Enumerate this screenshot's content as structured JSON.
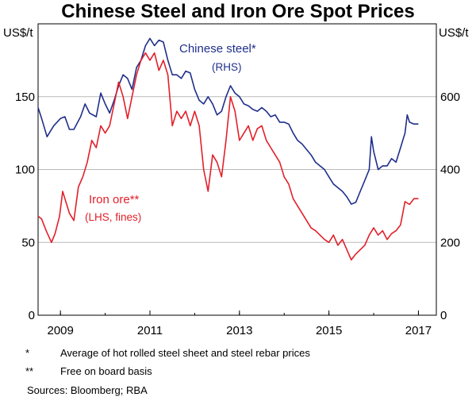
{
  "chart_data": {
    "type": "line",
    "title": "Chinese Steel and Iron Ore Spot Prices",
    "left_axis": {
      "unit": "US$/t",
      "ylim": [
        0,
        200
      ],
      "ticks": [
        0,
        50,
        100,
        150
      ]
    },
    "right_axis": {
      "unit": "US$/t",
      "ylim": [
        0,
        800
      ],
      "ticks": [
        0,
        200,
        400,
        600
      ]
    },
    "x_axis": {
      "xlim": [
        2008.5,
        2017.4
      ],
      "tick_labels": [
        "2009",
        "2011",
        "2013",
        "2015",
        "2017"
      ],
      "tick_positions": [
        2009,
        2011,
        2013,
        2015,
        2017
      ]
    },
    "grid": true,
    "series": [
      {
        "name": "Chinese steel*",
        "note": "(RHS)",
        "axis": "right",
        "color": "#1f2f8a",
        "points": [
          [
            2008.5,
            570
          ],
          [
            2008.58,
            540
          ],
          [
            2008.7,
            490
          ],
          [
            2008.85,
            520
          ],
          [
            2009.0,
            540
          ],
          [
            2009.1,
            545
          ],
          [
            2009.2,
            510
          ],
          [
            2009.3,
            510
          ],
          [
            2009.45,
            545
          ],
          [
            2009.55,
            580
          ],
          [
            2009.65,
            555
          ],
          [
            2009.8,
            545
          ],
          [
            2009.9,
            610
          ],
          [
            2010.0,
            580
          ],
          [
            2010.1,
            555
          ],
          [
            2010.2,
            590
          ],
          [
            2010.3,
            630
          ],
          [
            2010.4,
            660
          ],
          [
            2010.5,
            650
          ],
          [
            2010.6,
            620
          ],
          [
            2010.7,
            680
          ],
          [
            2010.8,
            700
          ],
          [
            2010.9,
            740
          ],
          [
            2011.0,
            760
          ],
          [
            2011.1,
            740
          ],
          [
            2011.2,
            755
          ],
          [
            2011.3,
            750
          ],
          [
            2011.4,
            700
          ],
          [
            2011.5,
            660
          ],
          [
            2011.6,
            660
          ],
          [
            2011.7,
            650
          ],
          [
            2011.8,
            670
          ],
          [
            2011.9,
            665
          ],
          [
            2012.0,
            620
          ],
          [
            2012.1,
            590
          ],
          [
            2012.2,
            580
          ],
          [
            2012.3,
            600
          ],
          [
            2012.4,
            580
          ],
          [
            2012.5,
            550
          ],
          [
            2012.6,
            560
          ],
          [
            2012.7,
            600
          ],
          [
            2012.8,
            630
          ],
          [
            2012.9,
            610
          ],
          [
            2013.0,
            600
          ],
          [
            2013.1,
            580
          ],
          [
            2013.2,
            575
          ],
          [
            2013.3,
            565
          ],
          [
            2013.4,
            560
          ],
          [
            2013.5,
            570
          ],
          [
            2013.6,
            560
          ],
          [
            2013.7,
            545
          ],
          [
            2013.8,
            550
          ],
          [
            2013.9,
            530
          ],
          [
            2014.0,
            530
          ],
          [
            2014.1,
            525
          ],
          [
            2014.2,
            500
          ],
          [
            2014.3,
            480
          ],
          [
            2014.4,
            470
          ],
          [
            2014.5,
            455
          ],
          [
            2014.6,
            440
          ],
          [
            2014.7,
            420
          ],
          [
            2014.8,
            410
          ],
          [
            2014.9,
            400
          ],
          [
            2015.0,
            380
          ],
          [
            2015.1,
            360
          ],
          [
            2015.2,
            350
          ],
          [
            2015.3,
            340
          ],
          [
            2015.4,
            325
          ],
          [
            2015.5,
            305
          ],
          [
            2015.6,
            310
          ],
          [
            2015.7,
            340
          ],
          [
            2015.8,
            370
          ],
          [
            2015.9,
            400
          ],
          [
            2015.95,
            490
          ],
          [
            2016.0,
            450
          ],
          [
            2016.1,
            400
          ],
          [
            2016.2,
            410
          ],
          [
            2016.3,
            410
          ],
          [
            2016.4,
            430
          ],
          [
            2016.5,
            420
          ],
          [
            2016.6,
            460
          ],
          [
            2016.7,
            500
          ],
          [
            2016.75,
            550
          ],
          [
            2016.8,
            530
          ],
          [
            2016.9,
            525
          ],
          [
            2017.0,
            525
          ]
        ]
      },
      {
        "name": "Iron ore**",
        "note": "(LHS, fines)",
        "axis": "left",
        "color": "#e2202a",
        "points": [
          [
            2008.5,
            68
          ],
          [
            2008.58,
            66
          ],
          [
            2008.68,
            58
          ],
          [
            2008.8,
            50
          ],
          [
            2008.88,
            56
          ],
          [
            2008.98,
            68
          ],
          [
            2009.05,
            85
          ],
          [
            2009.1,
            80
          ],
          [
            2009.2,
            70
          ],
          [
            2009.3,
            65
          ],
          [
            2009.4,
            88
          ],
          [
            2009.5,
            95
          ],
          [
            2009.6,
            105
          ],
          [
            2009.7,
            120
          ],
          [
            2009.8,
            115
          ],
          [
            2009.9,
            130
          ],
          [
            2010.0,
            125
          ],
          [
            2010.1,
            130
          ],
          [
            2010.2,
            145
          ],
          [
            2010.3,
            160
          ],
          [
            2010.4,
            150
          ],
          [
            2010.5,
            135
          ],
          [
            2010.6,
            150
          ],
          [
            2010.7,
            165
          ],
          [
            2010.8,
            175
          ],
          [
            2010.9,
            180
          ],
          [
            2011.0,
            175
          ],
          [
            2011.1,
            180
          ],
          [
            2011.2,
            168
          ],
          [
            2011.3,
            175
          ],
          [
            2011.4,
            165
          ],
          [
            2011.5,
            130
          ],
          [
            2011.6,
            140
          ],
          [
            2011.7,
            135
          ],
          [
            2011.8,
            140
          ],
          [
            2011.9,
            130
          ],
          [
            2012.0,
            140
          ],
          [
            2012.1,
            130
          ],
          [
            2012.2,
            100
          ],
          [
            2012.3,
            85
          ],
          [
            2012.4,
            110
          ],
          [
            2012.5,
            105
          ],
          [
            2012.6,
            95
          ],
          [
            2012.7,
            120
          ],
          [
            2012.8,
            150
          ],
          [
            2012.9,
            140
          ],
          [
            2013.0,
            120
          ],
          [
            2013.1,
            125
          ],
          [
            2013.2,
            130
          ],
          [
            2013.3,
            120
          ],
          [
            2013.4,
            128
          ],
          [
            2013.5,
            130
          ],
          [
            2013.6,
            120
          ],
          [
            2013.7,
            115
          ],
          [
            2013.8,
            110
          ],
          [
            2013.9,
            105
          ],
          [
            2014.0,
            95
          ],
          [
            2014.1,
            90
          ],
          [
            2014.2,
            80
          ],
          [
            2014.3,
            75
          ],
          [
            2014.4,
            70
          ],
          [
            2014.5,
            65
          ],
          [
            2014.6,
            60
          ],
          [
            2014.7,
            58
          ],
          [
            2014.8,
            55
          ],
          [
            2014.9,
            52
          ],
          [
            2015.0,
            50
          ],
          [
            2015.1,
            55
          ],
          [
            2015.2,
            48
          ],
          [
            2015.3,
            52
          ],
          [
            2015.4,
            45
          ],
          [
            2015.5,
            38
          ],
          [
            2015.6,
            42
          ],
          [
            2015.7,
            45
          ],
          [
            2015.8,
            48
          ],
          [
            2015.9,
            55
          ],
          [
            2016.0,
            60
          ],
          [
            2016.1,
            55
          ],
          [
            2016.2,
            58
          ],
          [
            2016.3,
            52
          ],
          [
            2016.4,
            56
          ],
          [
            2016.5,
            58
          ],
          [
            2016.6,
            62
          ],
          [
            2016.7,
            78
          ],
          [
            2016.8,
            76
          ],
          [
            2016.9,
            80
          ],
          [
            2017.0,
            80
          ]
        ]
      }
    ]
  },
  "notes": [
    {
      "mark": "*",
      "text": "Average of hot rolled steel sheet and steel rebar prices"
    },
    {
      "mark": "**",
      "text": "Free on board basis"
    }
  ],
  "sources": "Sources:  Bloomberg; RBA"
}
